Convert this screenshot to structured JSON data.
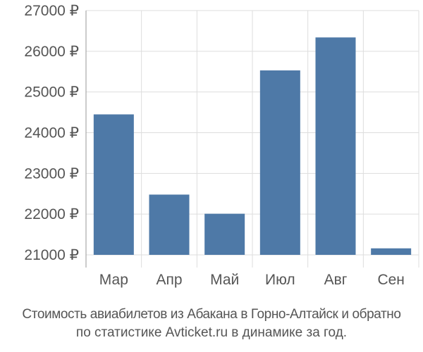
{
  "chart_data": {
    "type": "bar",
    "categories": [
      "Мар",
      "Апр",
      "Май",
      "Июл",
      "Авг",
      "Сен"
    ],
    "values": [
      24450,
      22480,
      22010,
      25530,
      26340,
      21160
    ],
    "ylim": [
      21000,
      27000
    ],
    "yticks": [
      21000,
      22000,
      23000,
      24000,
      25000,
      26000,
      27000
    ],
    "ytick_labels": [
      "21000 ₽",
      "22000 ₽",
      "23000 ₽",
      "24000 ₽",
      "25000 ₽",
      "26000 ₽",
      "27000 ₽"
    ],
    "grid": true,
    "colors": {
      "bar": "#4e79a7",
      "grid": "#dddddd",
      "axis": "#999999",
      "text": "#555555"
    }
  },
  "caption": {
    "line1": "Стоимость авиабилетов из Абакана в Горно-Алтайск и обратно",
    "line2": "по статистике Avticket.ru в динамике за год."
  }
}
